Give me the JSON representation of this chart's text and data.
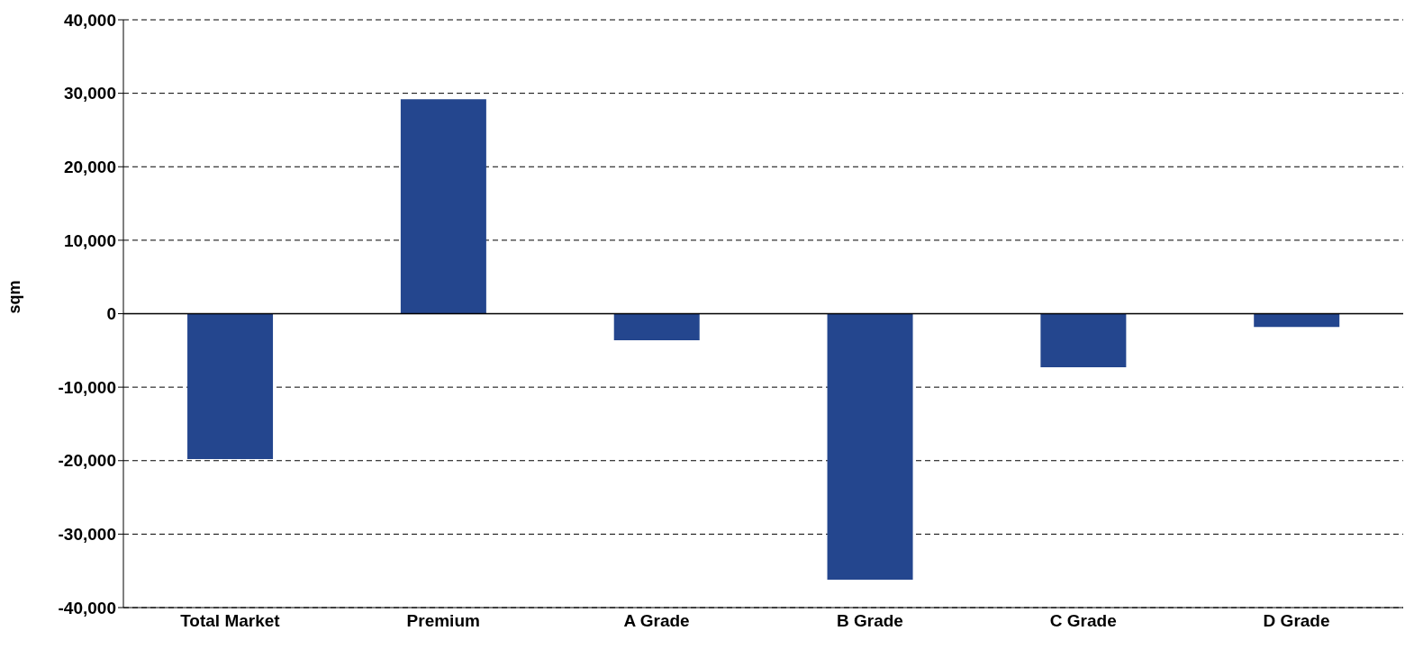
{
  "chart_data": {
    "type": "bar",
    "ylabel": "sqm",
    "categories": [
      "Total Market",
      "Premium",
      "A Grade",
      "B Grade",
      "C Grade",
      "D Grade"
    ],
    "values": [
      -19800,
      29200,
      -3600,
      -36200,
      -7300,
      -1800
    ],
    "color": "#24468e",
    "ylim": [
      -40000,
      40000
    ],
    "yticks": [
      {
        "value": -40000,
        "label": "-40,000"
      },
      {
        "value": -30000,
        "label": "-30,000"
      },
      {
        "value": -20000,
        "label": "-20,000"
      },
      {
        "value": -10000,
        "label": "-10,000"
      },
      0,
      {
        "value": 10000,
        "label": "10,000"
      },
      {
        "value": 20000,
        "label": "20,000"
      },
      {
        "value": 30000,
        "label": "30,000"
      },
      {
        "value": 40000,
        "label": "40,000"
      }
    ],
    "grid": "y",
    "legend": false
  }
}
